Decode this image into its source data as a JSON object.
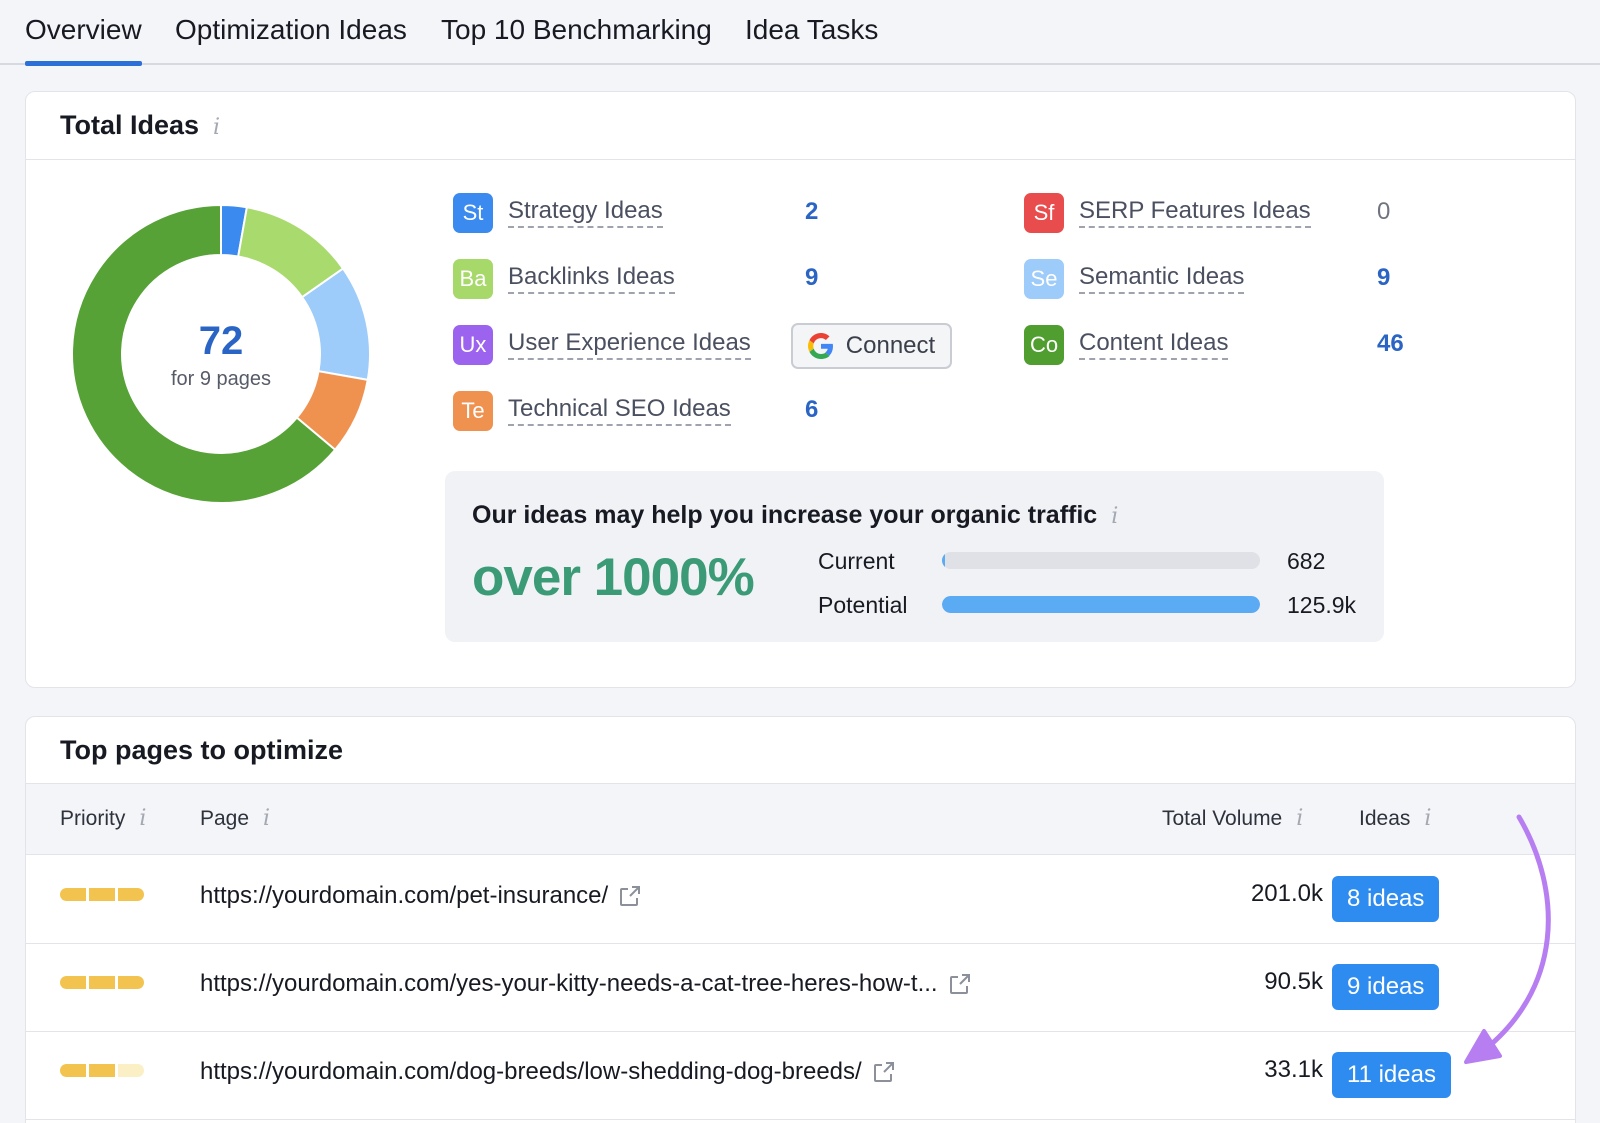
{
  "tabs": [
    {
      "label": "Overview",
      "active": true
    },
    {
      "label": "Optimization Ideas",
      "active": false
    },
    {
      "label": "Top 10 Benchmarking",
      "active": false
    },
    {
      "label": "Idea Tasks",
      "active": false
    }
  ],
  "total_ideas": {
    "title": "Total Ideas",
    "info_icon": "i",
    "donut": {
      "total": "72",
      "subtitle": "for 9 pages",
      "segments": [
        {
          "name": "Strategy Ideas",
          "value": 2,
          "color": "#3b8af0"
        },
        {
          "name": "Backlinks Ideas",
          "value": 9,
          "color": "#a9da6d"
        },
        {
          "name": "Semantic Ideas",
          "value": 9,
          "color": "#9dcbfa"
        },
        {
          "name": "Technical SEO Ideas",
          "value": 6,
          "color": "#ef9250"
        },
        {
          "name": "Content Ideas",
          "value": 46,
          "color": "#56a236"
        }
      ]
    },
    "categories": [
      {
        "abbr": "St",
        "label": "Strategy Ideas",
        "count": "2",
        "color": "#3b8af0"
      },
      {
        "abbr": "Ba",
        "label": "Backlinks Ideas",
        "count": "9",
        "color": "#a6d86a"
      },
      {
        "abbr": "Ux",
        "label": "User Experience Ideas",
        "count": "",
        "color": "#9c63ee"
      },
      {
        "abbr": "Te",
        "label": "Technical SEO Ideas",
        "count": "6",
        "color": "#ef9250"
      },
      {
        "abbr": "Sf",
        "label": "SERP Features Ideas",
        "count": "0",
        "color": "#e84c4c"
      },
      {
        "abbr": "Se",
        "label": "Semantic Ideas",
        "count": "9",
        "color": "#9dcbfa"
      },
      {
        "abbr": "Co",
        "label": "Content Ideas",
        "count": "46",
        "color": "#4f9e2f"
      }
    ],
    "connect_button": "Connect",
    "traffic": {
      "title": "Our ideas may help you increase your organic traffic",
      "increase": "over 1000%",
      "current_label": "Current",
      "current_value": "682",
      "current_fraction": 0.0054,
      "potential_label": "Potential",
      "potential_value": "125.9k",
      "potential_fraction": 1.0
    }
  },
  "top_pages": {
    "title": "Top pages to optimize",
    "columns": [
      "Priority",
      "Page",
      "Total Volume",
      "Ideas"
    ],
    "rows": [
      {
        "priority": 3,
        "url": "https://yourdomain.com/pet-insurance/",
        "volume": "201.0k",
        "ideas": "8 ideas"
      },
      {
        "priority": 3,
        "url": "https://yourdomain.com/yes-your-kitty-needs-a-cat-tree-heres-how-t...",
        "volume": "90.5k",
        "ideas": "9 ideas"
      },
      {
        "priority": 2,
        "url": "https://yourdomain.com/dog-breeds/low-shedding-dog-breeds/",
        "volume": "33.1k",
        "ideas": "11 ideas"
      }
    ]
  },
  "colors": {
    "accent": "#2e8cf0",
    "priority_on": "#f3c350",
    "priority_off": "#fbefc6",
    "annotation_arrow": "#b77ef2"
  }
}
